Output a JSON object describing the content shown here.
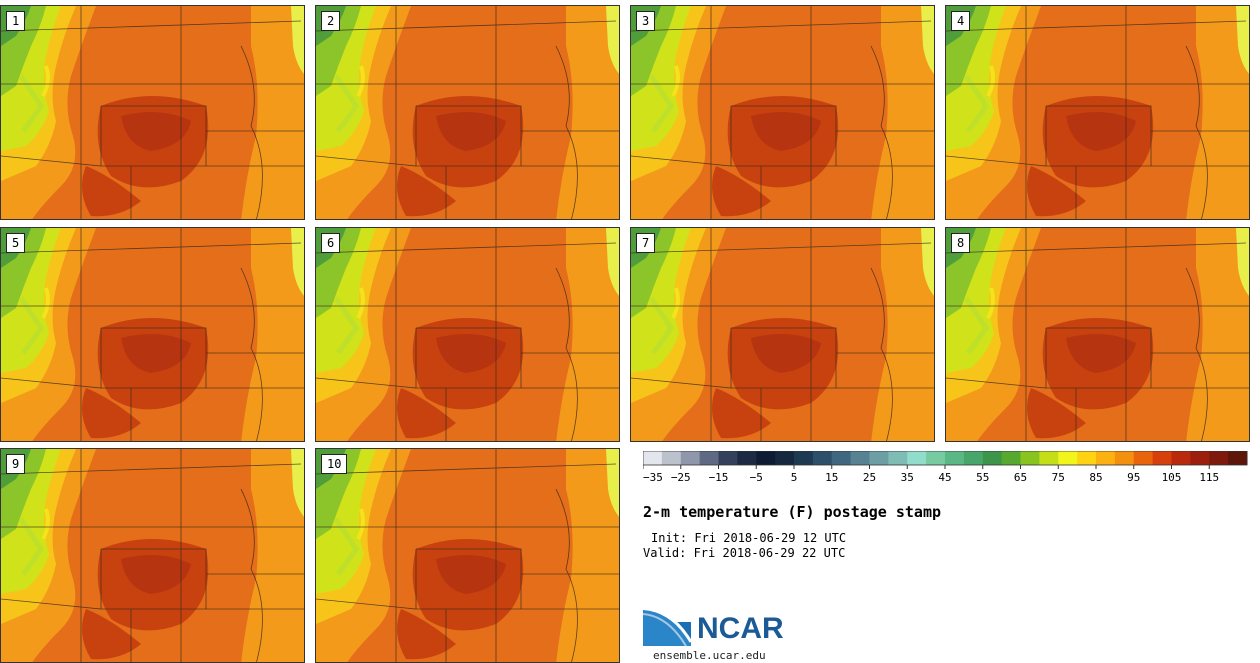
{
  "panels": [
    {
      "label": "1"
    },
    {
      "label": "2"
    },
    {
      "label": "3"
    },
    {
      "label": "4"
    },
    {
      "label": "5"
    },
    {
      "label": "6"
    },
    {
      "label": "7"
    },
    {
      "label": "8"
    },
    {
      "label": "9"
    },
    {
      "label": "10"
    }
  ],
  "colorbar": {
    "colors": [
      "#e3e6ec",
      "#bcc2cd",
      "#8f98ab",
      "#5e6a84",
      "#34415c",
      "#1c2a44",
      "#0e1c33",
      "#14283e",
      "#1e3a52",
      "#2c506a",
      "#3f6880",
      "#578292",
      "#6d9ea4",
      "#7fbcb6",
      "#92dccb",
      "#77cba0",
      "#5ab884",
      "#49a66b",
      "#3d9549",
      "#56a82e",
      "#89c31f",
      "#c4df18",
      "#f2f51b",
      "#ffd314",
      "#fcb012",
      "#f4900f",
      "#e8650c",
      "#d6400b",
      "#b92a0c",
      "#9c1f0d",
      "#7e1a0c",
      "#5e150a"
    ],
    "ticks": [
      "−35",
      "−25",
      "−15",
      "−5",
      "5",
      "15",
      "25",
      "35",
      "45",
      "55",
      "65",
      "75",
      "85",
      "95",
      "105",
      "115"
    ]
  },
  "title": "2-m temperature (F) postage stamp",
  "init": "Init: Fri 2018-06-29 12 UTC",
  "valid": "Valid: Fri 2018-06-29 22 UTC",
  "logo": {
    "text": "NCAR",
    "site": "ensemble.ucar.edu",
    "brand_color": "#1c5a96"
  }
}
